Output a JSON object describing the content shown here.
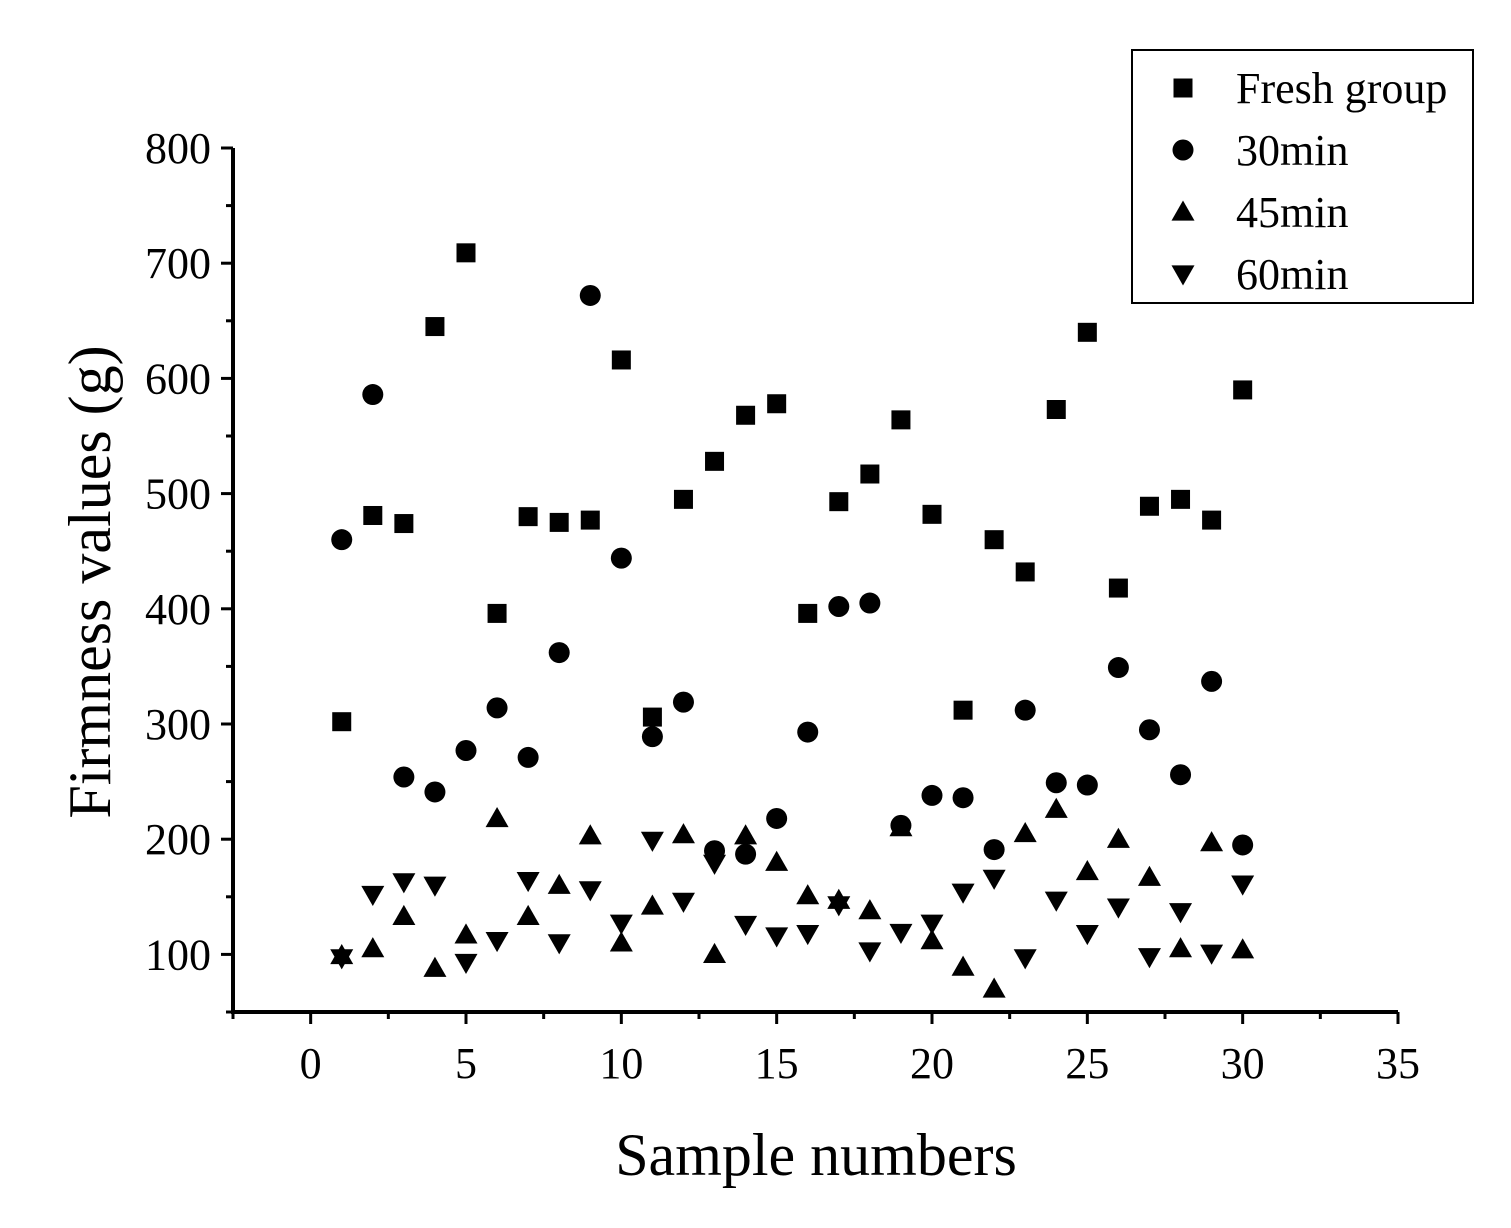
{
  "chart_data": {
    "type": "scatter",
    "title": "",
    "xlabel": "Sample numbers",
    "ylabel": "Firmness values (g)",
    "xlim": [
      -2.5,
      35
    ],
    "ylim": [
      50,
      800
    ],
    "xticks": [
      0,
      5,
      10,
      15,
      20,
      25,
      30,
      35
    ],
    "yticks": [
      100,
      200,
      300,
      400,
      500,
      600,
      700,
      800
    ],
    "grid": false,
    "legend_position": "top-right",
    "x": [
      1,
      2,
      3,
      4,
      5,
      6,
      7,
      8,
      9,
      10,
      11,
      12,
      13,
      14,
      15,
      16,
      17,
      18,
      19,
      20,
      21,
      22,
      23,
      24,
      25,
      26,
      27,
      28,
      29,
      30
    ],
    "series": [
      {
        "name": "Fresh group",
        "marker": "square",
        "color": "#000000",
        "values": [
          302,
          481,
          474,
          645,
          709,
          396,
          480,
          475,
          477,
          616,
          306,
          495,
          528,
          568,
          578,
          396,
          493,
          517,
          564,
          482,
          312,
          460,
          432,
          573,
          640,
          418,
          489,
          495,
          477,
          590
        ]
      },
      {
        "name": "30min",
        "marker": "circle",
        "color": "#000000",
        "values": [
          460,
          586,
          254,
          241,
          277,
          314,
          271,
          362,
          672,
          444,
          289,
          319,
          190,
          187,
          218,
          293,
          402,
          405,
          212,
          238,
          236,
          191,
          312,
          249,
          247,
          349,
          295,
          256,
          337,
          195
        ]
      },
      {
        "name": "45min",
        "marker": "triangle-up",
        "color": "#000000",
        "values": [
          99,
          105,
          133,
          88,
          117,
          218,
          133,
          160,
          203,
          110,
          142,
          204,
          100,
          203,
          180,
          151,
          147,
          138,
          210,
          112,
          89,
          70,
          205,
          226,
          172,
          200,
          167,
          105,
          197,
          104
        ]
      },
      {
        "name": "60min",
        "marker": "triangle-down",
        "color": "#000000",
        "values": [
          97,
          152,
          163,
          160,
          93,
          112,
          164,
          110,
          156,
          127,
          199,
          146,
          179,
          126,
          116,
          118,
          143,
          103,
          119,
          127,
          154,
          166,
          97,
          147,
          118,
          141,
          98,
          137,
          101,
          161
        ]
      }
    ]
  }
}
